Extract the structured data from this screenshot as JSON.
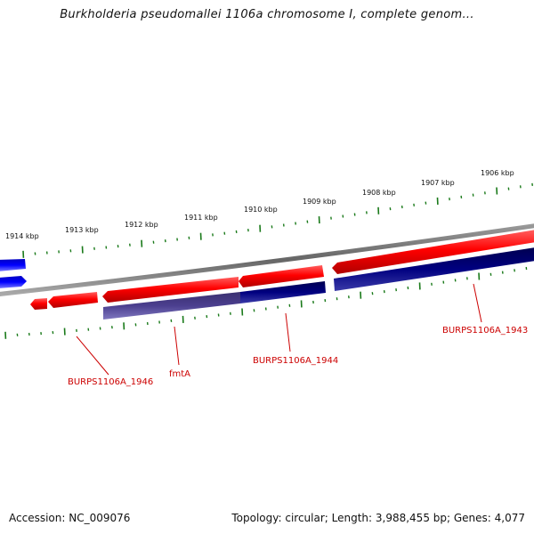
{
  "header": {
    "title": "Burkholderia pseudomallei 1106a chromosome I, complete genom..."
  },
  "scale": {
    "tick_labels": [
      "1914 kbp",
      "1913 kbp",
      "1912 kbp",
      "1911 kbp",
      "1910 kbp",
      "1909 kbp",
      "1908 kbp",
      "1907 kbp",
      "1906 kbp"
    ]
  },
  "genes": {
    "labels": [
      "BURPS1106A_1946",
      "fmtA",
      "BURPS1106A_1944",
      "BURPS1106A_1943"
    ]
  },
  "colors": {
    "forward_gene": "#ff0000",
    "reverse_gene": "#000080",
    "reverse_gene_light": "#4b3f8f",
    "blue_gene": "#0000ff",
    "backbone": "#777777",
    "tick": "#1a7a1a",
    "label": "#cc0000"
  },
  "footer": {
    "accession": "Accession: NC_009076",
    "summary": "Topology: circular; Length: 3,988,455 bp; Genes: 4,077"
  }
}
